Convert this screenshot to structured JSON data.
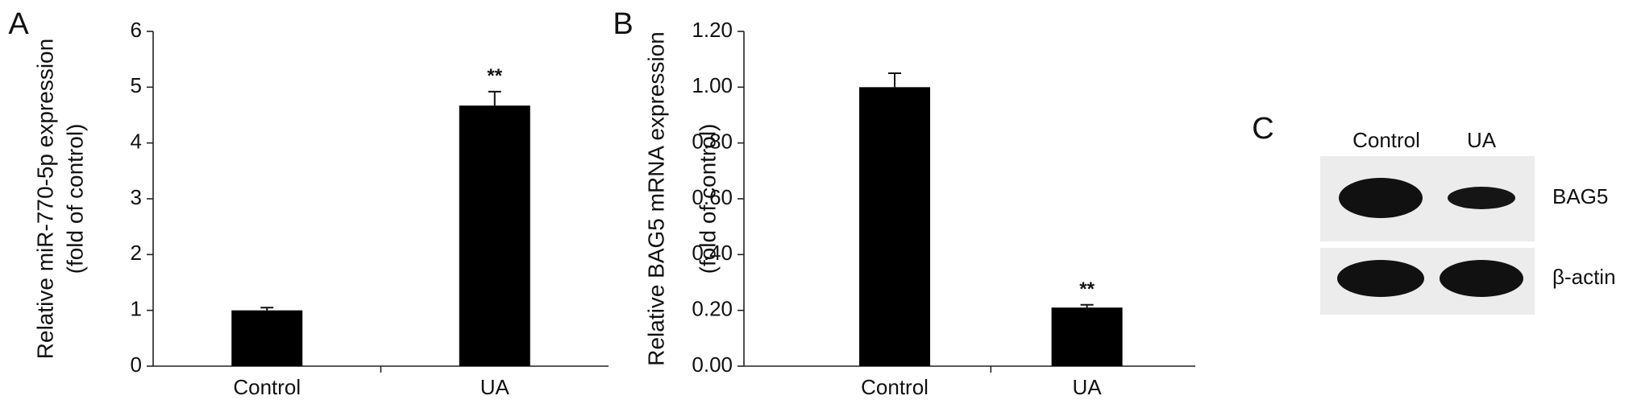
{
  "chart_data": [
    {
      "type": "bar",
      "panel_label": "A",
      "ylabel": [
        "Relative miR-770-5p expression",
        "(fold of control)"
      ],
      "categories": [
        "Control",
        "UA"
      ],
      "values": [
        1.0,
        4.67
      ],
      "errors": [
        0.05,
        0.25
      ],
      "significance": [
        null,
        "**"
      ],
      "color": "#000000",
      "ylim": [
        0,
        6
      ],
      "yticks": [
        0,
        1,
        2,
        3,
        4,
        5,
        6
      ]
    },
    {
      "type": "bar",
      "panel_label": "B",
      "ylabel": [
        "Relative BAG5 mRNA expression",
        "(fold of control)"
      ],
      "categories": [
        "Control",
        "UA"
      ],
      "values": [
        1.0,
        0.21
      ],
      "errors": [
        0.05,
        0.01
      ],
      "significance": [
        null,
        "**"
      ],
      "color": "#000000",
      "ylim": [
        0,
        1.2
      ],
      "yticks": [
        {
          "value": 0,
          "label": "0.00"
        },
        {
          "value": 0.2,
          "label": "0.20"
        },
        {
          "value": 0.4,
          "label": "0.40"
        },
        {
          "value": 0.6,
          "label": "0.60"
        },
        {
          "value": 0.8,
          "label": "0.80"
        },
        {
          "value": 1.0,
          "label": "1.00"
        },
        {
          "value": 1.2,
          "label": "1.20"
        }
      ]
    }
  ],
  "panel_c": {
    "panel_label": "C",
    "lanes": [
      "Control",
      "UA"
    ],
    "proteins": [
      "BAG5",
      "β-actin"
    ]
  }
}
